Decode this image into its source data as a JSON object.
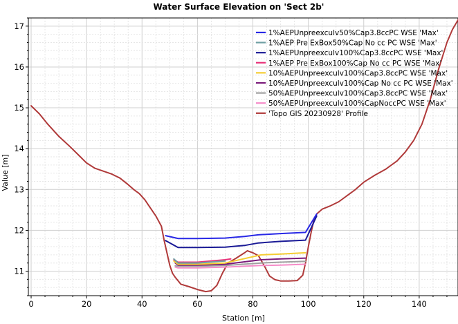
{
  "chart_data": {
    "type": "line",
    "title": "Water Surface Elevation on 'Sect 2b'",
    "xlabel": "Station [m]",
    "ylabel": "Value [m]",
    "xlim": [
      -1,
      154
    ],
    "ylim": [
      10.4,
      17.2
    ],
    "xticks": [
      0,
      20,
      40,
      60,
      80,
      100,
      120,
      140
    ],
    "yticks": [
      11,
      12,
      13,
      14,
      15,
      16,
      17
    ],
    "grid": true,
    "legend_position": "top-right",
    "series": [
      {
        "name": "1%AEPUnpreexculv50%Cap3.8ccPC WSE 'Max'",
        "color": "#2828e6",
        "x": [
          48.5,
          53,
          60,
          70,
          77,
          82,
          90,
          99,
          103
        ],
        "y": [
          11.87,
          11.8,
          11.8,
          11.81,
          11.85,
          11.89,
          11.92,
          11.95,
          12.4
        ]
      },
      {
        "name": "1%AEP Pre ExBox50%Cap No cc PC WSE 'Max'",
        "color": "#6f9fa3",
        "x": [
          51.5,
          53,
          60,
          70
        ],
        "y": [
          11.3,
          11.2,
          11.2,
          11.25
        ]
      },
      {
        "name": "1%AEPUnpreexculv100%Cap3.8ccPC WSE 'Max'",
        "color": "#1a1a96",
        "x": [
          48.5,
          53,
          60,
          70,
          77,
          82,
          90,
          99,
          103
        ],
        "y": [
          11.75,
          11.58,
          11.58,
          11.59,
          11.63,
          11.69,
          11.73,
          11.76,
          12.35
        ]
      },
      {
        "name": "1%AEP Pre ExBox100%Cap No cc PC WSE 'Max'",
        "color": "#e8337a",
        "x": [
          51.5,
          53,
          60,
          70,
          72
        ],
        "y": [
          11.28,
          11.22,
          11.22,
          11.28,
          11.3
        ]
      },
      {
        "name": "10%AEPUnpreexculv100%Cap3.8ccPC WSE 'Max'",
        "color": "#f5cc33",
        "x": [
          51.5,
          53,
          60,
          70,
          83,
          90,
          99
        ],
        "y": [
          11.25,
          11.17,
          11.17,
          11.2,
          11.4,
          11.42,
          11.45
        ]
      },
      {
        "name": "10%AEPUnpreexculv100%Cap No cc PC WSE 'Max'",
        "color": "#7a1a7a",
        "x": [
          52,
          53,
          60,
          70,
          83,
          90,
          99
        ],
        "y": [
          11.2,
          11.15,
          11.15,
          11.17,
          11.28,
          11.3,
          11.32
        ]
      },
      {
        "name": "50%AEPUnpreexculv100%Cap3.8ccPC WSE 'Max'",
        "color": "#a0a0a0",
        "x": [
          52,
          53,
          60,
          70,
          83,
          90,
          99
        ],
        "y": [
          11.13,
          11.12,
          11.12,
          11.14,
          11.2,
          11.22,
          11.24
        ]
      },
      {
        "name": "50%AEPUnpreexculv100%CapNoccPC WSE 'Max'",
        "color": "#f58cc8",
        "x": [
          52,
          53,
          60,
          70,
          83,
          90,
          99
        ],
        "y": [
          11.1,
          11.08,
          11.08,
          11.1,
          11.14,
          11.15,
          11.17
        ]
      },
      {
        "name": "'Topo GIS 20230928' Profile",
        "color": "#b03a3a",
        "x": [
          0,
          3,
          6,
          10,
          14,
          17,
          20,
          23,
          26,
          29,
          32,
          35,
          37,
          39,
          41,
          43,
          45,
          47,
          48,
          49,
          50,
          51,
          52,
          54,
          57,
          60,
          63,
          65,
          67,
          69,
          71,
          74,
          77,
          78,
          80,
          82,
          84,
          86,
          88,
          90,
          93,
          96,
          98,
          99,
          100,
          101,
          102,
          103,
          105,
          108,
          111,
          114,
          117,
          120,
          124,
          128,
          132,
          135,
          138,
          141,
          144,
          147,
          150,
          152,
          154
        ],
        "y": [
          15.05,
          14.85,
          14.6,
          14.3,
          14.05,
          13.85,
          13.65,
          13.52,
          13.45,
          13.38,
          13.28,
          13.12,
          13.0,
          12.9,
          12.75,
          12.55,
          12.35,
          12.1,
          11.75,
          11.45,
          11.15,
          10.95,
          10.85,
          10.68,
          10.62,
          10.55,
          10.5,
          10.52,
          10.65,
          10.95,
          11.2,
          11.32,
          11.45,
          11.5,
          11.45,
          11.38,
          11.15,
          10.88,
          10.79,
          10.76,
          10.76,
          10.77,
          10.9,
          11.2,
          11.6,
          11.95,
          12.25,
          12.4,
          12.52,
          12.6,
          12.7,
          12.85,
          13.0,
          13.18,
          13.35,
          13.5,
          13.7,
          13.92,
          14.2,
          14.6,
          15.2,
          15.95,
          16.6,
          16.92,
          17.15
        ]
      }
    ]
  }
}
